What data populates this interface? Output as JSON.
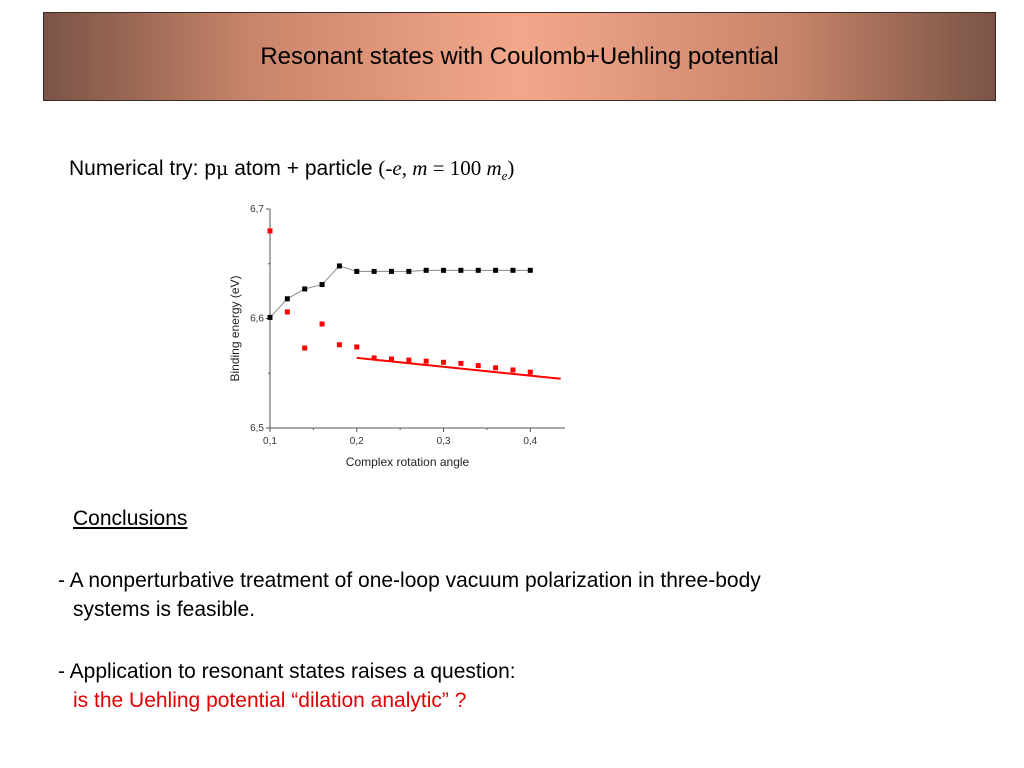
{
  "slide": {
    "title": "Resonant states with Coulomb+Uehling potential",
    "subtitle": {
      "prefix": "Numerical try: p",
      "mu": "μ",
      "middle": " atom + particle ",
      "formula_open": "(-",
      "formula_e": "e",
      "formula_comma": ", ",
      "formula_m": "m",
      "formula_eq": " = 100 ",
      "formula_me": "m",
      "formula_sub": "e",
      "formula_close": ")"
    },
    "conclusions": {
      "heading": "Conclusions",
      "bullet1_line1": "- A nonperturbative treatment of one-loop vacuum polarization in three-body",
      "bullet1_line2": "systems is feasible.",
      "bullet2_line1": "- Application to resonant states raises a question:",
      "bullet2_line2": "is the Uehling potential “dilation analytic” ?"
    },
    "colors": {
      "black_series": "#000000",
      "red_series": "#ff0000",
      "question_text": "#e00000"
    }
  },
  "chart_data": {
    "type": "scatter",
    "xlabel": "Complex rotation angle",
    "ylabel": "Binding energy (eV)",
    "xlim": [
      0.1,
      0.44
    ],
    "ylim": [
      6.5,
      6.7
    ],
    "x_ticks": [
      0.1,
      0.2,
      0.3,
      0.4
    ],
    "x_tick_labels": [
      "0,1",
      "0,2",
      "0,3",
      "0,4"
    ],
    "y_ticks": [
      6.5,
      6.6,
      6.7
    ],
    "y_tick_labels": [
      "6,5",
      "6,6",
      "6,7"
    ],
    "grid": false,
    "series": [
      {
        "color": "#000000",
        "marker": "square",
        "connected": true,
        "x": [
          0.1,
          0.12,
          0.14,
          0.16,
          0.18,
          0.2,
          0.22,
          0.24,
          0.26,
          0.28,
          0.3,
          0.32,
          0.34,
          0.36,
          0.38,
          0.4
        ],
        "y": [
          6.601,
          6.618,
          6.627,
          6.631,
          6.648,
          6.643,
          6.643,
          6.643,
          6.643,
          6.644,
          6.644,
          6.644,
          6.644,
          6.644,
          6.644,
          6.644
        ]
      },
      {
        "color": "#ff0000",
        "marker": "square",
        "connected": false,
        "x": [
          0.1,
          0.12,
          0.14,
          0.16,
          0.18,
          0.2,
          0.22,
          0.24,
          0.26,
          0.28,
          0.3,
          0.32,
          0.34,
          0.36,
          0.38,
          0.4
        ],
        "y": [
          6.68,
          6.606,
          6.573,
          6.595,
          6.576,
          6.574,
          6.564,
          6.563,
          6.562,
          6.561,
          6.56,
          6.559,
          6.557,
          6.555,
          6.553,
          6.551
        ],
        "fit_line": {
          "x": [
            0.2,
            0.435
          ],
          "y": [
            6.564,
            6.545
          ]
        }
      }
    ]
  }
}
